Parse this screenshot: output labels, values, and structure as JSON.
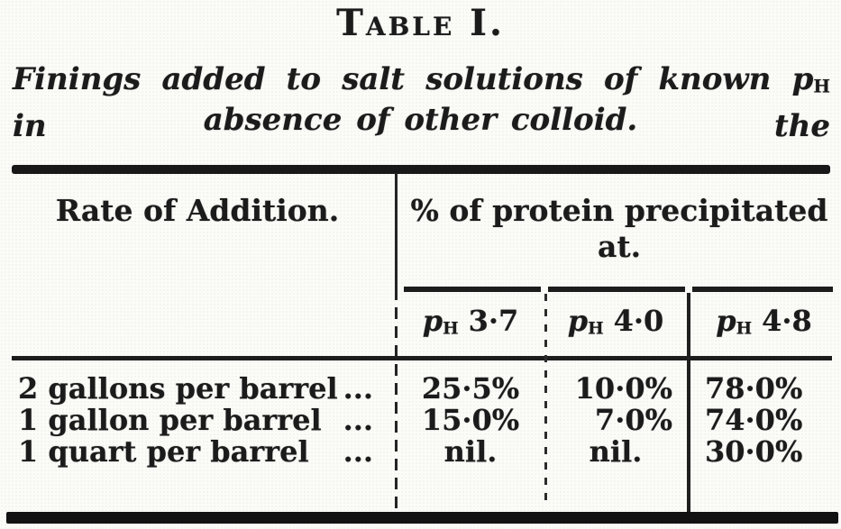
{
  "document": {
    "title": "Table I.",
    "caption": {
      "line1_before": "Finings added to salt solutions of known ",
      "ph_base": "p",
      "ph_sub": "H",
      "line1_after": " in the",
      "line2": "absence of other colloid."
    },
    "table": {
      "rate_header": "Rate of Addition.",
      "protein_header_line1": "% of protein precipitated",
      "protein_header_line2": "at.",
      "ph_columns": [
        {
          "base": "p",
          "sub": "H",
          "value": "3·7"
        },
        {
          "base": "p",
          "sub": "H",
          "value": "4·0"
        },
        {
          "base": "p",
          "sub": "H",
          "value": "4·8"
        }
      ],
      "rows": [
        {
          "label": "2 gallons per barrel",
          "leader": "...",
          "values": [
            "25·5%",
            "10·0%",
            "78·0%"
          ]
        },
        {
          "label": "1 gallon per barrel",
          "leader": "...",
          "values": [
            "15·0%",
            "7·0%",
            "74·0%"
          ]
        },
        {
          "label": "1 quart per barrel",
          "leader": "...",
          "values": [
            "nil.",
            "nil.",
            "30·0%"
          ]
        }
      ]
    },
    "ink_color": "#1b1b1b",
    "paper_color": "#fbfbf8"
  },
  "chart_data": {
    "type": "table",
    "title": "Table I. Finings added to salt solutions of known pH in the absence of other colloid.",
    "columns": [
      "Rate of Addition.",
      "pH 3·7",
      "pH 4·0",
      "pH 4·8"
    ],
    "rows": [
      [
        "2 gallons per barrel",
        "25·5%",
        "10·0%",
        "78·0%"
      ],
      [
        "1 gallon per barrel",
        "15·0%",
        "7·0%",
        "74·0%"
      ],
      [
        "1 quart per barrel",
        "nil.",
        "nil.",
        "30·0%"
      ]
    ]
  }
}
